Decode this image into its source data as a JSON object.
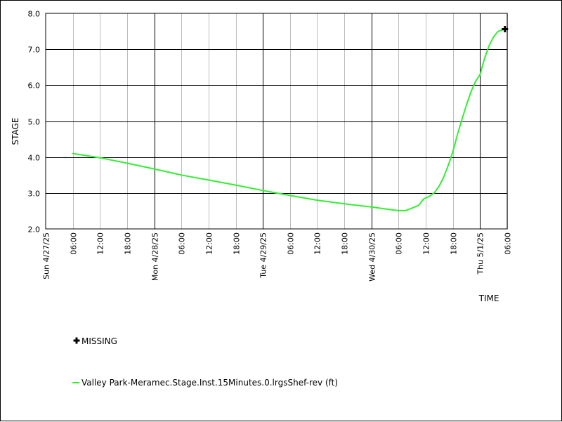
{
  "chart_data": {
    "type": "line",
    "xlabel": "TIME",
    "ylabel": "STAGE",
    "x_range": [
      "2025-04-27T00:00",
      "2025-05-01T06:00"
    ],
    "ylim": [
      2.0,
      8.0
    ],
    "y_ticks": [
      "2.0",
      "3.0",
      "4.0",
      "5.0",
      "6.0",
      "7.0",
      "8.0"
    ],
    "x_ticks": [
      {
        "t": "2025-04-27T00:00",
        "label": "Sun 4/27/25"
      },
      {
        "t": "2025-04-27T06:00",
        "label": "06:00"
      },
      {
        "t": "2025-04-27T12:00",
        "label": "12:00"
      },
      {
        "t": "2025-04-27T18:00",
        "label": "18:00"
      },
      {
        "t": "2025-04-28T00:00",
        "label": "Mon 4/28/25"
      },
      {
        "t": "2025-04-28T06:00",
        "label": "06:00"
      },
      {
        "t": "2025-04-28T12:00",
        "label": "12:00"
      },
      {
        "t": "2025-04-28T18:00",
        "label": "18:00"
      },
      {
        "t": "2025-04-29T00:00",
        "label": "Tue 4/29/25"
      },
      {
        "t": "2025-04-29T06:00",
        "label": "06:00"
      },
      {
        "t": "2025-04-29T12:00",
        "label": "12:00"
      },
      {
        "t": "2025-04-29T18:00",
        "label": "18:00"
      },
      {
        "t": "2025-04-30T00:00",
        "label": "Wed 4/30/25"
      },
      {
        "t": "2025-04-30T06:00",
        "label": "06:00"
      },
      {
        "t": "2025-04-30T12:00",
        "label": "12:00"
      },
      {
        "t": "2025-04-30T18:00",
        "label": "18:00"
      },
      {
        "t": "2025-05-01T00:00",
        "label": "Thu 5/1/25"
      },
      {
        "t": "2025-05-01T06:00",
        "label": "06:00"
      }
    ],
    "grid": true,
    "series": [
      {
        "name": "Valley Park-Meramec.Stage.Inst.15Minutes.0.lrgsShef-rev (ft)",
        "color": "#33ee33",
        "points": [
          [
            "2025-04-27T06:00",
            4.1
          ],
          [
            "2025-04-27T12:00",
            3.98
          ],
          [
            "2025-04-27T18:00",
            3.83
          ],
          [
            "2025-04-28T00:00",
            3.67
          ],
          [
            "2025-04-28T06:00",
            3.5
          ],
          [
            "2025-04-28T12:00",
            3.36
          ],
          [
            "2025-04-28T18:00",
            3.22
          ],
          [
            "2025-04-29T00:00",
            3.07
          ],
          [
            "2025-04-29T06:00",
            2.93
          ],
          [
            "2025-04-29T12:00",
            2.8
          ],
          [
            "2025-04-29T18:00",
            2.7
          ],
          [
            "2025-04-30T00:00",
            2.61
          ],
          [
            "2025-04-30T04:00",
            2.54
          ],
          [
            "2025-04-30T06:00",
            2.51
          ],
          [
            "2025-04-30T07:30",
            2.51
          ],
          [
            "2025-04-30T09:00",
            2.58
          ],
          [
            "2025-04-30T10:30",
            2.66
          ],
          [
            "2025-04-30T11:30",
            2.83
          ],
          [
            "2025-04-30T13:00",
            2.92
          ],
          [
            "2025-04-30T14:00",
            3.02
          ],
          [
            "2025-04-30T15:00",
            3.2
          ],
          [
            "2025-04-30T16:00",
            3.45
          ],
          [
            "2025-04-30T17:00",
            3.78
          ],
          [
            "2025-04-30T18:00",
            4.15
          ],
          [
            "2025-04-30T19:00",
            4.62
          ],
          [
            "2025-04-30T20:00",
            5.05
          ],
          [
            "2025-04-30T21:00",
            5.45
          ],
          [
            "2025-04-30T22:00",
            5.82
          ],
          [
            "2025-04-30T23:00",
            6.1
          ],
          [
            "2025-05-01T00:00",
            6.3
          ],
          [
            "2025-05-01T01:00",
            6.75
          ],
          [
            "2025-05-01T02:00",
            7.1
          ],
          [
            "2025-05-01T03:00",
            7.35
          ],
          [
            "2025-05-01T04:00",
            7.5
          ],
          [
            "2025-05-01T05:30",
            7.56
          ]
        ]
      }
    ],
    "missing": {
      "label": "MISSING",
      "points": [
        [
          "2025-05-01T05:30",
          7.56
        ]
      ]
    },
    "legend_placement": "bottom-left"
  }
}
